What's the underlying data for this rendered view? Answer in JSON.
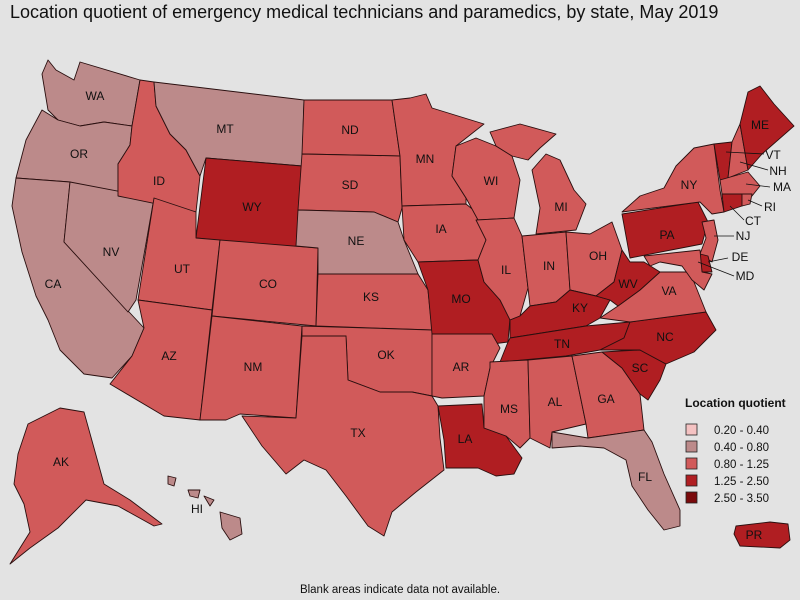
{
  "title": "Location quotient of emergency medical technicians and paramedics, by state, May 2019",
  "footnote": "Blank areas indicate data not available.",
  "colors": {
    "background": "#e3e3e3",
    "bin_0.20-0.40": "#f4c2c2",
    "bin_0.40-0.80": "#bc8a8a",
    "bin_0.80-1.25": "#d15a5a",
    "bin_1.25-2.50": "#b01e22",
    "bin_2.50-3.50": "#7a0a0c"
  },
  "legend": {
    "title": "Location quotient",
    "items": [
      {
        "label": "0.20 - 0.40",
        "color": "#f4c2c2"
      },
      {
        "label": "0.40 - 0.80",
        "color": "#bc8a8a"
      },
      {
        "label": "0.80 - 1.25",
        "color": "#d15a5a"
      },
      {
        "label": "1.25 - 2.50",
        "color": "#b01e22"
      },
      {
        "label": "2.50 - 3.50",
        "color": "#7a0a0c"
      }
    ]
  },
  "states": [
    {
      "abbr": "WA",
      "bin": "0.40 - 0.80"
    },
    {
      "abbr": "OR",
      "bin": "0.40 - 0.80"
    },
    {
      "abbr": "CA",
      "bin": "0.40 - 0.80"
    },
    {
      "abbr": "NV",
      "bin": "0.40 - 0.80"
    },
    {
      "abbr": "ID",
      "bin": "0.80 - 1.25"
    },
    {
      "abbr": "MT",
      "bin": "0.40 - 0.80"
    },
    {
      "abbr": "WY",
      "bin": "1.25 - 2.50"
    },
    {
      "abbr": "UT",
      "bin": "0.80 - 1.25"
    },
    {
      "abbr": "AZ",
      "bin": "0.80 - 1.25"
    },
    {
      "abbr": "CO",
      "bin": "0.80 - 1.25"
    },
    {
      "abbr": "NM",
      "bin": "0.80 - 1.25"
    },
    {
      "abbr": "ND",
      "bin": "0.80 - 1.25"
    },
    {
      "abbr": "SD",
      "bin": "0.80 - 1.25"
    },
    {
      "abbr": "NE",
      "bin": "0.40 - 0.80"
    },
    {
      "abbr": "KS",
      "bin": "0.80 - 1.25"
    },
    {
      "abbr": "OK",
      "bin": "0.80 - 1.25"
    },
    {
      "abbr": "TX",
      "bin": "0.80 - 1.25"
    },
    {
      "abbr": "MN",
      "bin": "0.80 - 1.25"
    },
    {
      "abbr": "IA",
      "bin": "0.80 - 1.25"
    },
    {
      "abbr": "MO",
      "bin": "1.25 - 2.50"
    },
    {
      "abbr": "AR",
      "bin": "0.80 - 1.25"
    },
    {
      "abbr": "LA",
      "bin": "1.25 - 2.50"
    },
    {
      "abbr": "WI",
      "bin": "0.80 - 1.25"
    },
    {
      "abbr": "IL",
      "bin": "0.80 - 1.25"
    },
    {
      "abbr": "MI",
      "bin": "0.80 - 1.25"
    },
    {
      "abbr": "IN",
      "bin": "0.80 - 1.25"
    },
    {
      "abbr": "OH",
      "bin": "0.80 - 1.25"
    },
    {
      "abbr": "KY",
      "bin": "1.25 - 2.50"
    },
    {
      "abbr": "TN",
      "bin": "1.25 - 2.50"
    },
    {
      "abbr": "MS",
      "bin": "0.80 - 1.25"
    },
    {
      "abbr": "AL",
      "bin": "0.80 - 1.25"
    },
    {
      "abbr": "GA",
      "bin": "0.80 - 1.25"
    },
    {
      "abbr": "FL",
      "bin": "0.40 - 0.80"
    },
    {
      "abbr": "SC",
      "bin": "1.25 - 2.50"
    },
    {
      "abbr": "NC",
      "bin": "1.25 - 2.50"
    },
    {
      "abbr": "VA",
      "bin": "0.80 - 1.25"
    },
    {
      "abbr": "WV",
      "bin": "1.25 - 2.50"
    },
    {
      "abbr": "PA",
      "bin": "1.25 - 2.50"
    },
    {
      "abbr": "NY",
      "bin": "0.80 - 1.25"
    },
    {
      "abbr": "VT",
      "bin": "1.25 - 2.50"
    },
    {
      "abbr": "NH",
      "bin": "0.80 - 1.25"
    },
    {
      "abbr": "ME",
      "bin": "1.25 - 2.50"
    },
    {
      "abbr": "MA",
      "bin": "0.80 - 1.25"
    },
    {
      "abbr": "RI",
      "bin": "0.80 - 1.25"
    },
    {
      "abbr": "CT",
      "bin": "1.25 - 2.50"
    },
    {
      "abbr": "NJ",
      "bin": "0.80 - 1.25"
    },
    {
      "abbr": "DE",
      "bin": "1.25 - 2.50"
    },
    {
      "abbr": "MD",
      "bin": "0.80 - 1.25"
    },
    {
      "abbr": "AK",
      "bin": "0.80 - 1.25"
    },
    {
      "abbr": "HI",
      "bin": "0.40 - 0.80"
    },
    {
      "abbr": "PR",
      "bin": "1.25 - 2.50"
    }
  ]
}
